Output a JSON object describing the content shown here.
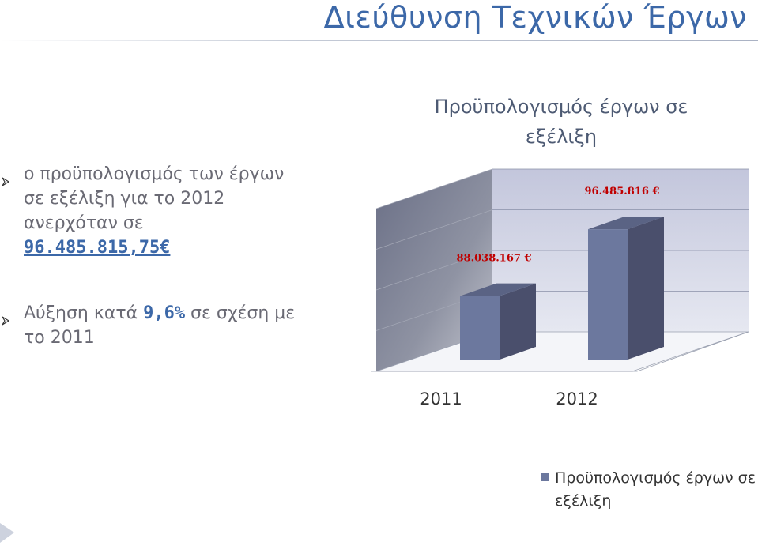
{
  "page": {
    "title": "Διεύθυνση Τεχνικών Έργων"
  },
  "bullets": [
    {
      "line1": "ο προϋπολογισμός των έργων",
      "line2": "σε εξέλιξη για το 2012",
      "line3": "ανερχόταν σε",
      "amount": "96.485.815,75€"
    },
    {
      "prefix": "Αύξηση κατά ",
      "percent": "9,6%",
      "suffix": " σε σχέση με",
      "line2": "το 2011"
    }
  ],
  "chart_data": {
    "type": "bar",
    "title_line1": "Προϋπολογισμός έργων σε",
    "title_line2": "εξέλιξη",
    "categories": [
      "2011",
      "2012"
    ],
    "series": [
      {
        "name": "Προϋπολογισμός έργων σε εξέλιξη",
        "values": [
          88038167,
          96485816
        ],
        "data_labels": [
          "88.038.167 €",
          "96.485.816 €"
        ]
      }
    ],
    "ylim": [
      80000000,
      100000000
    ],
    "grid": true,
    "legend_position": "bottom-right",
    "legend_line1": "Προϋπολογισμός έργων σε",
    "legend_line2": "εξέλιξη",
    "colors": {
      "bar_front": "#6c789e",
      "bar_side": "#4a4f6c",
      "bar_top": "#5a6384",
      "label": "#c00000"
    }
  }
}
